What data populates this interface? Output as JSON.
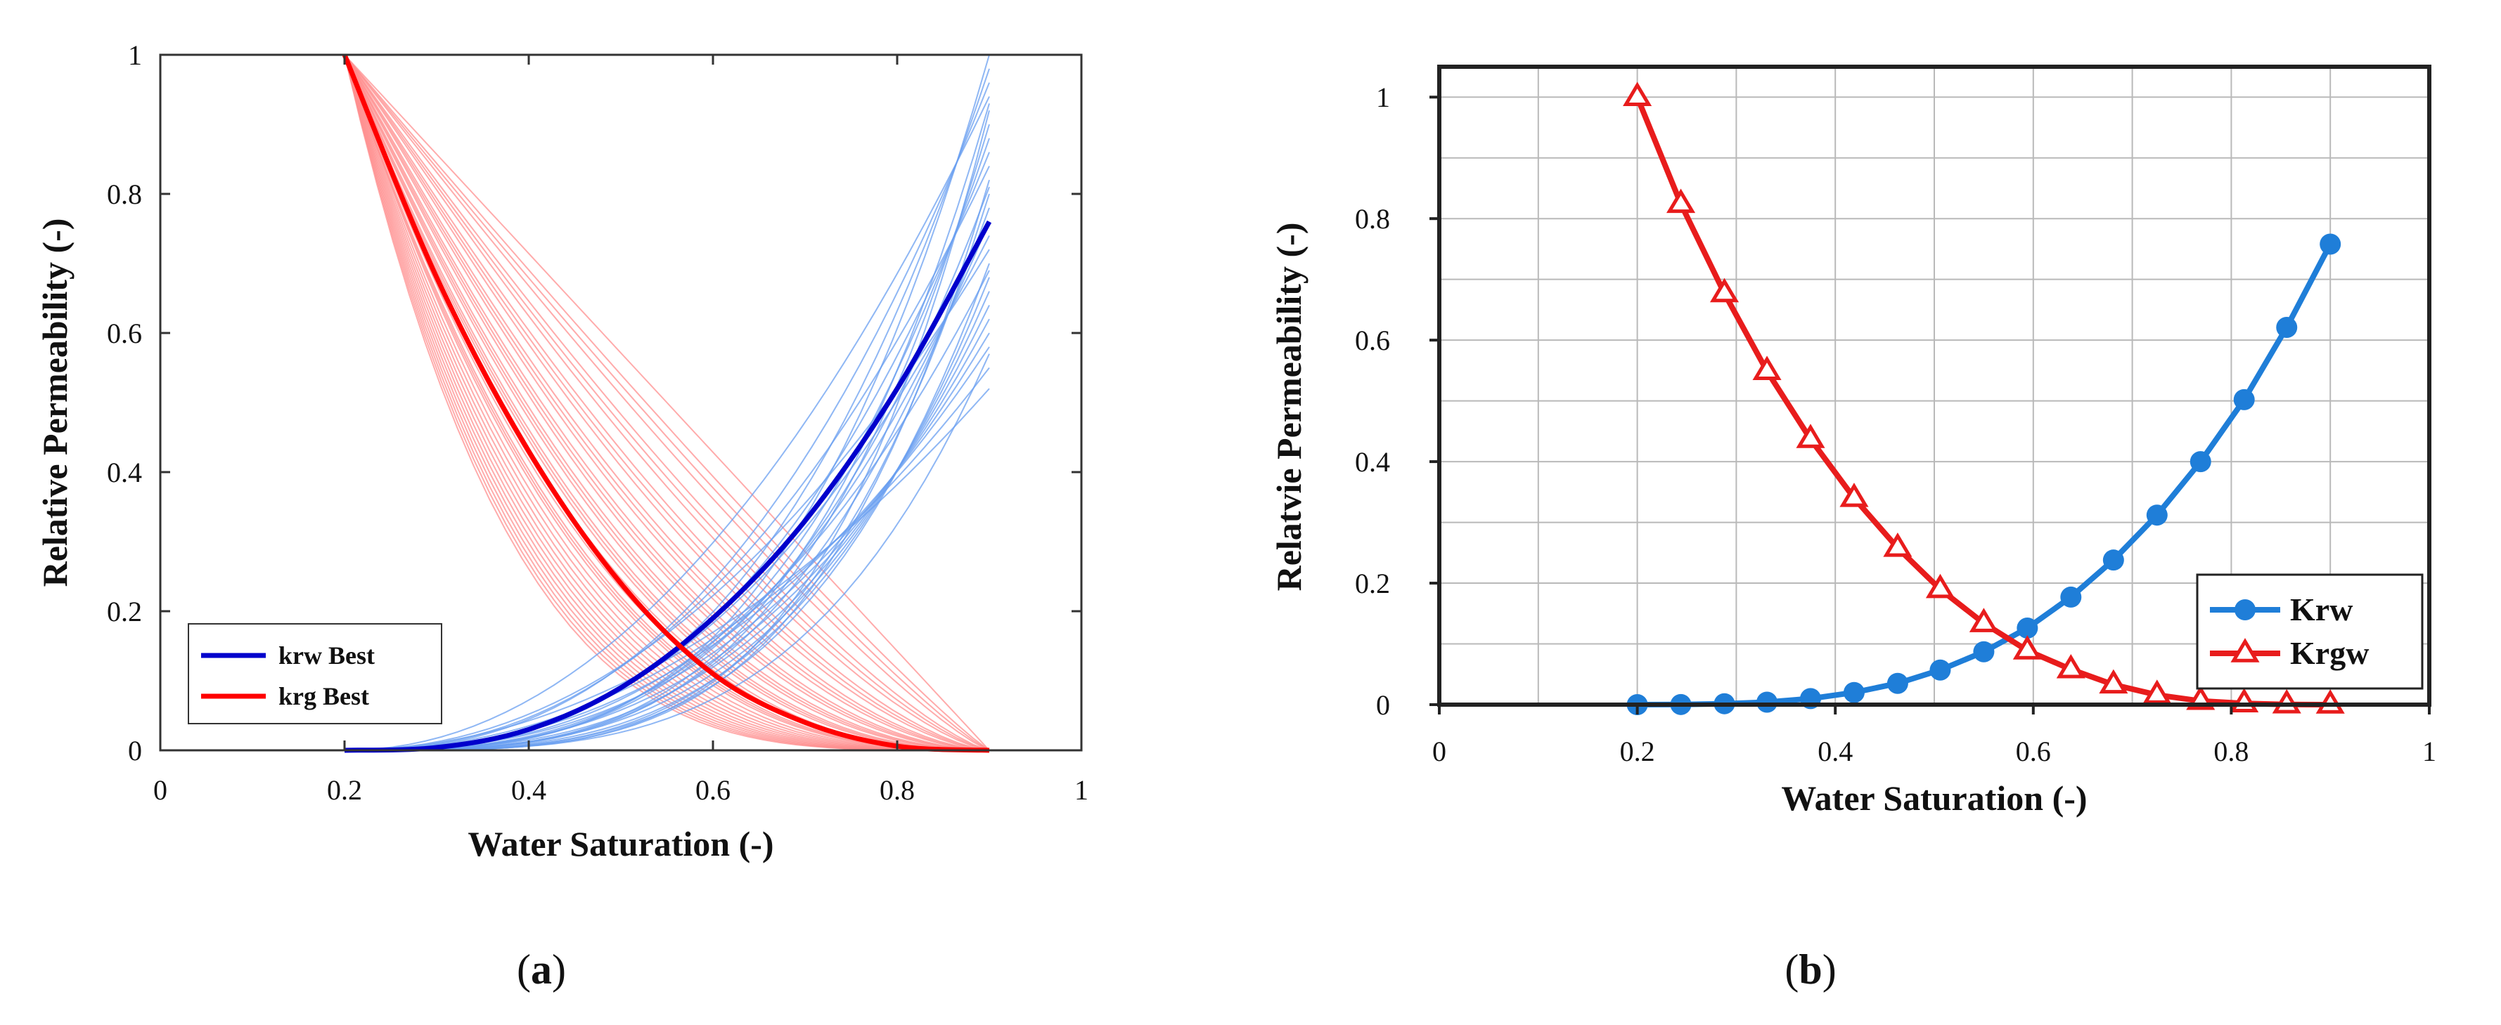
{
  "chart_data": [
    {
      "type": "line",
      "panel_label": "a",
      "xlabel": "Water Saturation (-)",
      "ylabel": "Relative Permeability (-)",
      "xlim": [
        0,
        1
      ],
      "ylim": [
        0,
        1
      ],
      "xticks": [
        "0",
        "0.2",
        "0.4",
        "0.6",
        "0.8",
        "1"
      ],
      "yticks": [
        "0",
        "0.2",
        "0.4",
        "0.6",
        "0.8",
        "1"
      ],
      "grid": false,
      "legend_position": "bottom-left",
      "colors": {
        "krw_best": "#0000cc",
        "krg_best": "#ff0000",
        "krw_ensemble": "#6a9ff0",
        "krg_ensemble": "#ff8f8f"
      },
      "ensemble": {
        "swc": 0.2,
        "sw_max": 0.9,
        "krw_endpoints": [
          0.52,
          0.55,
          0.58,
          0.6,
          0.62,
          0.64,
          0.66,
          0.68,
          0.7,
          0.72,
          0.74,
          0.76,
          0.78,
          0.8,
          0.82,
          0.84,
          0.86,
          0.88,
          0.9,
          0.92,
          0.94,
          0.96,
          0.98,
          1.0,
          0.57,
          0.69,
          0.81,
          0.93
        ],
        "krw_exponents": [
          2.0,
          2.2,
          2.4,
          2.6,
          2.8,
          3.0,
          3.2,
          3.4,
          3.6,
          2.1,
          2.5,
          2.9,
          3.3,
          3.7,
          3.9,
          2.3,
          2.7,
          3.1,
          3.5,
          4.0,
          2.05,
          2.45,
          2.85,
          3.25,
          3.65,
          2.65,
          3.05,
          3.45
        ],
        "krg_exponents": [
          1.0,
          1.1,
          1.2,
          1.3,
          1.4,
          1.5,
          1.6,
          1.7,
          1.8,
          1.9,
          2.0,
          2.1,
          2.2,
          2.3,
          2.4,
          2.5,
          2.6,
          2.7,
          2.8,
          2.9,
          3.0,
          3.1,
          3.2,
          3.3,
          3.4,
          3.5,
          3.6,
          3.7,
          3.8,
          3.9,
          4.0,
          1.15,
          1.35,
          1.55,
          1.75,
          1.95,
          2.15,
          2.35,
          2.55,
          2.75
        ]
      },
      "series": [
        {
          "name": "krw Best",
          "x": [
            0.2,
            0.3,
            0.4,
            0.5,
            0.6,
            0.7,
            0.8,
            0.9
          ],
          "y": [
            0.0,
            0.004,
            0.03,
            0.09,
            0.19,
            0.33,
            0.52,
            0.76
          ]
        },
        {
          "name": "krg Best",
          "x": [
            0.2,
            0.3,
            0.4,
            0.5,
            0.6,
            0.7,
            0.8,
            0.9
          ],
          "y": [
            1.0,
            0.68,
            0.43,
            0.24,
            0.11,
            0.04,
            0.006,
            0.0
          ]
        }
      ]
    },
    {
      "type": "line",
      "panel_label": "b",
      "xlabel": "Water Saturation (-)",
      "ylabel": "Relatvie Permeability (-)",
      "xlim": [
        0,
        1
      ],
      "ylim": [
        0,
        1.05
      ],
      "xticks": [
        "0",
        "0.2",
        "0.4",
        "0.6",
        "0.8",
        "1"
      ],
      "yticks": [
        "0",
        "0.2",
        "0.4",
        "0.6",
        "0.8",
        "1"
      ],
      "grid": true,
      "legend_position": "bottom-right",
      "colors": {
        "krw": "#1f7ed8",
        "krgw": "#e81c1c"
      },
      "series": [
        {
          "name": "Krw",
          "marker": "circle",
          "x": [
            0.2,
            0.244,
            0.288,
            0.331,
            0.375,
            0.419,
            0.463,
            0.506,
            0.55,
            0.594,
            0.638,
            0.681,
            0.725,
            0.769,
            0.813,
            0.856,
            0.9
          ],
          "y": [
            0.0,
            0.0002,
            0.0015,
            0.004,
            0.01,
            0.02,
            0.035,
            0.057,
            0.087,
            0.126,
            0.177,
            0.238,
            0.312,
            0.4,
            0.502,
            0.621,
            0.758
          ]
        },
        {
          "name": "Krgw",
          "marker": "triangle",
          "x": [
            0.2,
            0.244,
            0.288,
            0.331,
            0.375,
            0.419,
            0.463,
            0.506,
            0.55,
            0.594,
            0.638,
            0.681,
            0.725,
            0.769,
            0.813,
            0.856,
            0.9
          ],
          "y": [
            1.0,
            0.824,
            0.677,
            0.549,
            0.437,
            0.34,
            0.258,
            0.19,
            0.134,
            0.089,
            0.058,
            0.033,
            0.016,
            0.006,
            0.002,
            0.0003,
            0.0
          ]
        }
      ]
    }
  ]
}
